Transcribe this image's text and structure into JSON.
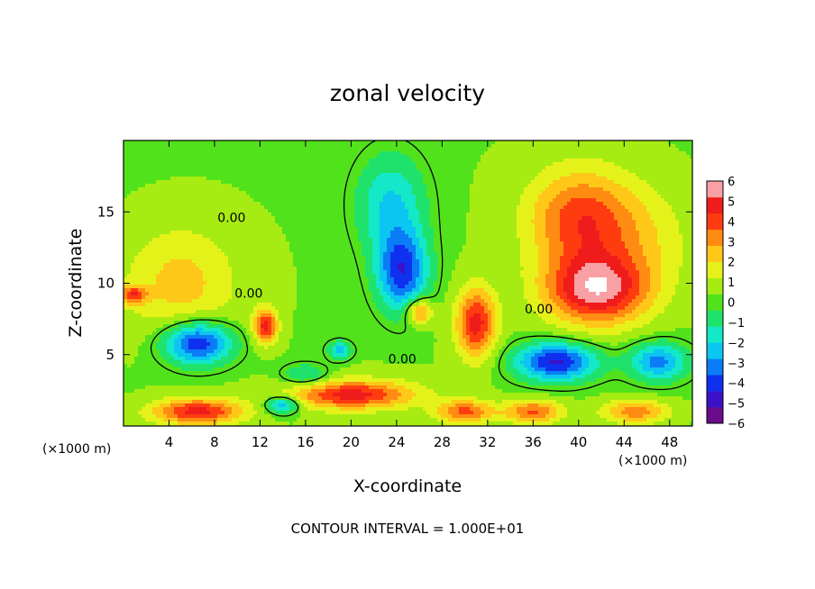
{
  "chart_data": {
    "type": "heatmap",
    "title": "zonal velocity",
    "xlabel": "X-coordinate",
    "ylabel": "Z-coordinate",
    "x_unit_label": "(×1000 m)",
    "x_unit_label_right": "(×1000 m)",
    "xlim": [
      0,
      50
    ],
    "ylim": [
      0,
      20
    ],
    "x_ticks": [
      4,
      8,
      12,
      16,
      20,
      24,
      28,
      32,
      36,
      40,
      44,
      48
    ],
    "x_tick_labels": [
      "4",
      "8",
      "12",
      "16",
      "20",
      "24",
      "28",
      "32",
      "36",
      "40",
      "44",
      "48"
    ],
    "y_ticks": [
      5,
      10,
      15
    ],
    "y_tick_labels": [
      "5",
      "10",
      "15"
    ],
    "colorbar": {
      "min": -6,
      "max": 6,
      "tick_values": [
        6,
        5,
        4,
        3,
        2,
        1,
        0,
        -1,
        -2,
        -3,
        -4,
        -5,
        -6
      ],
      "tick_labels": [
        "6",
        "5",
        "4",
        "3",
        "2",
        "1",
        "0",
        "−1",
        "−2",
        "−3",
        "−4",
        "−5",
        "−6"
      ],
      "colors": [
        "#6a0c8c",
        "#3b12c8",
        "#1030f0",
        "#0a7cf5",
        "#0bc6f0",
        "#13e8c8",
        "#1fe26c",
        "#52e21c",
        "#a6ec12",
        "#e5f21a",
        "#ffc818",
        "#ff8c12",
        "#ff3c10",
        "#f01c1c",
        "#f8a0a4"
      ]
    },
    "contour_labels": [
      {
        "text": "0.00",
        "x": 9.5,
        "z": 14.3
      },
      {
        "text": "0.00",
        "x": 11.0,
        "z": 9.0
      },
      {
        "text": "0.00",
        "x": 24.5,
        "z": 4.4
      },
      {
        "text": "0.00",
        "x": 36.5,
        "z": 7.9
      }
    ],
    "field_features": [
      {
        "u": 5.0,
        "x": 41.5,
        "z": 9.5,
        "sx": 4.5,
        "sz": 2.4
      },
      {
        "u": 3.5,
        "x": 40.0,
        "z": 14.5,
        "sx": 4.5,
        "sz": 3.5
      },
      {
        "u": 4.5,
        "x": 31.0,
        "z": 7.2,
        "sx": 1.7,
        "sz": 2.4
      },
      {
        "u": -4.5,
        "x": 24.5,
        "z": 10.8,
        "sx": 2.2,
        "sz": 2.8
      },
      {
        "u": -2.5,
        "x": 23.5,
        "z": 15.5,
        "sx": 3.0,
        "sz": 3.5
      },
      {
        "u": 3.5,
        "x": 26.0,
        "z": 8.0,
        "sx": 1.1,
        "sz": 0.9
      },
      {
        "u": -5.0,
        "x": 6.5,
        "z": 5.8,
        "sx": 3.0,
        "sz": 1.5
      },
      {
        "u": -5.0,
        "x": 38.0,
        "z": 4.5,
        "sx": 3.5,
        "sz": 1.3
      },
      {
        "u": -3.5,
        "x": 47.0,
        "z": 4.5,
        "sx": 2.5,
        "sz": 1.3
      },
      {
        "u": 4.5,
        "x": 6.5,
        "z": 1.0,
        "sx": 4.0,
        "sz": 0.9
      },
      {
        "u": 4.5,
        "x": 20.0,
        "z": 2.2,
        "sx": 5.5,
        "sz": 1.0
      },
      {
        "u": 4.5,
        "x": 12.5,
        "z": 7.0,
        "sx": 1.0,
        "sz": 1.2
      },
      {
        "u": 3.5,
        "x": 0.8,
        "z": 9.2,
        "sx": 1.2,
        "sz": 0.6
      },
      {
        "u": 3.5,
        "x": 36.0,
        "z": 1.0,
        "sx": 2.5,
        "sz": 0.8
      },
      {
        "u": 3.5,
        "x": 30.0,
        "z": 1.0,
        "sx": 2.5,
        "sz": 0.8
      },
      {
        "u": 3.0,
        "x": 45.0,
        "z": 1.0,
        "sx": 3.0,
        "sz": 0.8
      },
      {
        "u": -3.5,
        "x": 14.0,
        "z": 1.5,
        "sx": 1.5,
        "sz": 0.6
      },
      {
        "u": -3.0,
        "x": 19.0,
        "z": 5.3,
        "sx": 1.0,
        "sz": 0.6
      },
      {
        "u": -2.0,
        "x": 16.0,
        "z": 3.5,
        "sx": 2.0,
        "sz": 0.8
      },
      {
        "u": 2.0,
        "x": 5.0,
        "z": 10.0,
        "sx": 5.0,
        "sz": 4.0
      },
      {
        "u": 1.5,
        "x": 45.0,
        "z": 13.0,
        "sx": 5.0,
        "sz": 4.0
      }
    ],
    "footer_note": "CONTOUR INTERVAL = 1.000E+01"
  }
}
